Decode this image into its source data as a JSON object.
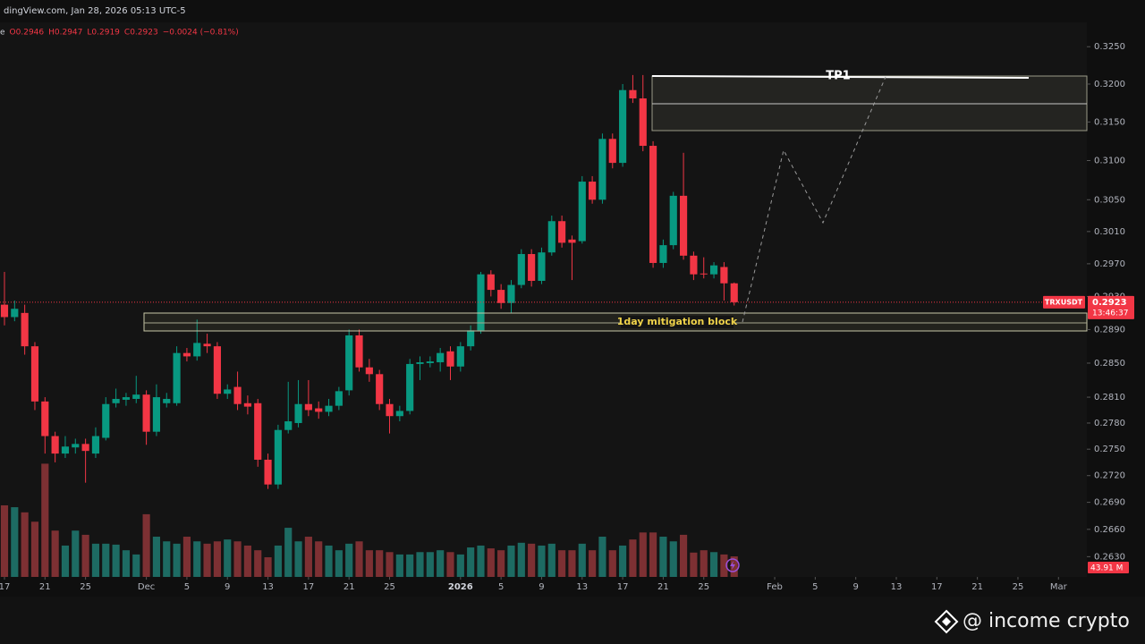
{
  "chart_data": {
    "type": "candlestick",
    "header": "dingView.com, Jan 28, 2026 05:13 UTC-5",
    "ohlc_legend": [
      "e",
      "O0.2946",
      "H0.2947",
      "L0.2919",
      "C0.2923",
      "−0.0024 (−0.81%)"
    ],
    "log_scale": true,
    "up_color": "#089981",
    "down_color": "#f23645",
    "open": [
      0.292,
      0.2905,
      0.291,
      0.287,
      0.2805,
      0.2765,
      0.2745,
      0.2752,
      0.2756,
      0.2745,
      0.2763,
      0.2803,
      0.2807,
      0.2808,
      0.2813,
      0.277,
      0.2803,
      0.2803,
      0.2862,
      0.2858,
      0.2873,
      0.287,
      0.2814,
      0.2822,
      0.2803,
      0.2803,
      0.2738,
      0.271,
      0.2772,
      0.278,
      0.2802,
      0.2797,
      0.2793,
      0.28,
      0.2818,
      0.2883,
      0.2845,
      0.2837,
      0.2802,
      0.2788,
      0.2794,
      0.2849,
      0.285,
      0.2851,
      0.2864,
      0.2846,
      0.287,
      0.2889,
      0.2957,
      0.2938,
      0.2922,
      0.2944,
      0.2982,
      0.2949,
      0.2984,
      0.3023,
      0.3,
      0.2998,
      0.3073,
      0.305,
      0.3128,
      0.3097,
      0.3192,
      0.3181,
      0.3119,
      0.2971,
      0.2993,
      0.3055,
      0.298,
      0.2958,
      0.2957,
      0.2966,
      0.2946
    ],
    "high": [
      0.296,
      0.2925,
      0.292,
      0.2875,
      0.281,
      0.277,
      0.2765,
      0.2762,
      0.2762,
      0.2775,
      0.281,
      0.282,
      0.2815,
      0.2835,
      0.2818,
      0.2825,
      0.2815,
      0.287,
      0.2868,
      0.2902,
      0.2885,
      0.2875,
      0.2825,
      0.284,
      0.2812,
      0.2808,
      0.2745,
      0.2778,
      0.2828,
      0.283,
      0.283,
      0.2805,
      0.2808,
      0.2822,
      0.289,
      0.289,
      0.2855,
      0.2842,
      0.2808,
      0.28,
      0.2855,
      0.2858,
      0.2858,
      0.2868,
      0.287,
      0.2875,
      0.2895,
      0.296,
      0.2962,
      0.2945,
      0.295,
      0.2988,
      0.2988,
      0.299,
      0.303,
      0.303,
      0.3005,
      0.308,
      0.308,
      0.3135,
      0.3135,
      0.32,
      0.3212,
      0.3212,
      0.3125,
      0.3,
      0.306,
      0.311,
      0.2985,
      0.2978,
      0.2972,
      0.2972,
      0.2947
    ],
    "low": [
      0.2895,
      0.29,
      0.286,
      0.2795,
      0.2745,
      0.2735,
      0.274,
      0.2745,
      0.2712,
      0.274,
      0.276,
      0.2798,
      0.28,
      0.2803,
      0.2755,
      0.2765,
      0.2798,
      0.28,
      0.2852,
      0.2853,
      0.2862,
      0.2808,
      0.2808,
      0.2795,
      0.279,
      0.273,
      0.2705,
      0.2705,
      0.2768,
      0.2775,
      0.2788,
      0.2785,
      0.2788,
      0.2795,
      0.2812,
      0.284,
      0.2828,
      0.2795,
      0.2768,
      0.2782,
      0.279,
      0.283,
      0.2845,
      0.284,
      0.283,
      0.284,
      0.2865,
      0.2885,
      0.293,
      0.2915,
      0.291,
      0.294,
      0.2942,
      0.2945,
      0.298,
      0.299,
      0.295,
      0.2995,
      0.3045,
      0.3045,
      0.309,
      0.3092,
      0.3175,
      0.3112,
      0.2965,
      0.2965,
      0.2988,
      0.2975,
      0.295,
      0.2952,
      0.2952,
      0.2925,
      0.2919
    ],
    "close": [
      0.2905,
      0.2915,
      0.287,
      0.2805,
      0.2765,
      0.2745,
      0.2753,
      0.2756,
      0.2748,
      0.2765,
      0.2802,
      0.2808,
      0.281,
      0.2813,
      0.277,
      0.281,
      0.2808,
      0.2862,
      0.2858,
      0.2874,
      0.287,
      0.2814,
      0.2819,
      0.2802,
      0.2799,
      0.2738,
      0.271,
      0.2772,
      0.2782,
      0.2802,
      0.2795,
      0.2793,
      0.28,
      0.2817,
      0.2883,
      0.2845,
      0.2837,
      0.2802,
      0.2788,
      0.2794,
      0.2849,
      0.2851,
      0.2852,
      0.2862,
      0.2846,
      0.287,
      0.2889,
      0.2957,
      0.2938,
      0.2922,
      0.2944,
      0.2982,
      0.2949,
      0.2984,
      0.3023,
      0.2996,
      0.2996,
      0.3073,
      0.305,
      0.3128,
      0.3097,
      0.3192,
      0.3181,
      0.3119,
      0.2971,
      0.2993,
      0.3055,
      0.298,
      0.2957,
      0.2957,
      0.2968,
      0.2946,
      0.2923
    ],
    "volume": {
      "up_color": "#1d6b63",
      "down_color": "#7d3033",
      "values": [
        153,
        149,
        138,
        118,
        242,
        99,
        67,
        99,
        90,
        71,
        71,
        69,
        57,
        48,
        134,
        86,
        76,
        71,
        86,
        76,
        71,
        76,
        80,
        76,
        67,
        57,
        42,
        67,
        105,
        76,
        86,
        76,
        67,
        57,
        71,
        76,
        57,
        57,
        53,
        48,
        48,
        53,
        53,
        57,
        53,
        48,
        63,
        67,
        61,
        57,
        67,
        73,
        71,
        67,
        71,
        57,
        57,
        71,
        57,
        86,
        57,
        67,
        80,
        95,
        95,
        86,
        76,
        90,
        52,
        57,
        53,
        48,
        43.91
      ],
      "ylim": [
        0,
        260
      ],
      "last_label": "43.91 M"
    },
    "xlim": [
      -0.44,
      106.8
    ],
    "xticks": [
      {
        "value": 0,
        "label": "17"
      },
      {
        "value": 4,
        "label": "21"
      },
      {
        "value": 8,
        "label": "25"
      },
      {
        "value": 14,
        "label": "Dec"
      },
      {
        "value": 18,
        "label": "5"
      },
      {
        "value": 22,
        "label": "9"
      },
      {
        "value": 26,
        "label": "13"
      },
      {
        "value": 30,
        "label": "17"
      },
      {
        "value": 34,
        "label": "21"
      },
      {
        "value": 38,
        "label": "25"
      },
      {
        "value": 45,
        "label": "2026"
      },
      {
        "value": 49,
        "label": "5"
      },
      {
        "value": 53,
        "label": "9"
      },
      {
        "value": 57,
        "label": "13"
      },
      {
        "value": 61,
        "label": "17"
      },
      {
        "value": 65,
        "label": "21"
      },
      {
        "value": 69,
        "label": "25"
      },
      {
        "value": 76,
        "label": "Feb"
      },
      {
        "value": 80,
        "label": "5"
      },
      {
        "value": 84,
        "label": "9"
      },
      {
        "value": 88,
        "label": "13"
      },
      {
        "value": 92,
        "label": "17"
      },
      {
        "value": 96,
        "label": "21"
      },
      {
        "value": 100,
        "label": "25"
      },
      {
        "value": 104,
        "label": "Mar"
      }
    ],
    "ylim": [
      0.2608,
      0.3283
    ],
    "yticks": [
      {
        "value": 0.325,
        "label": "0.3250"
      },
      {
        "value": 0.32,
        "label": "0.3200"
      },
      {
        "value": 0.315,
        "label": "0.3150"
      },
      {
        "value": 0.31,
        "label": "0.3100"
      },
      {
        "value": 0.305,
        "label": "0.3050"
      },
      {
        "value": 0.301,
        "label": "0.3010"
      },
      {
        "value": 0.297,
        "label": "0.2970"
      },
      {
        "value": 0.293,
        "label": "0.2930"
      },
      {
        "value": 0.289,
        "label": "0.2890"
      },
      {
        "value": 0.285,
        "label": "0.2850"
      },
      {
        "value": 0.281,
        "label": "0.2810"
      },
      {
        "value": 0.278,
        "label": "0.2780"
      },
      {
        "value": 0.275,
        "label": "0.2750"
      },
      {
        "value": 0.272,
        "label": "0.2720"
      },
      {
        "value": 0.269,
        "label": "0.2690"
      },
      {
        "value": 0.266,
        "label": "0.2660"
      },
      {
        "value": 0.263,
        "label": "0.2630"
      }
    ],
    "last_price": {
      "symbol": "TRXUSDT",
      "value": 0.2923,
      "countdown": "13:46:37"
    },
    "annotations": {
      "target": "TP1",
      "zone": "1day mitigation block"
    },
    "watermark": "@ income crypto"
  }
}
